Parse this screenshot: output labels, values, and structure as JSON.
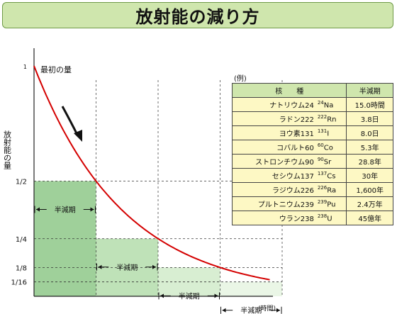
{
  "title": "放射能の減り方",
  "chart_data": {
    "type": "line",
    "ylabel": "放射能の量",
    "xlabel": "(時間)",
    "curve_label": "最初の量",
    "yticks": [
      "1",
      "1/2",
      "1/4",
      "1/8",
      "1/16"
    ],
    "ytick_values": [
      1,
      0.5,
      0.25,
      0.125,
      0.0625
    ],
    "x": [
      0,
      1,
      2,
      3,
      4
    ],
    "values": [
      1,
      0.5,
      0.25,
      0.125,
      0.0625
    ],
    "halflife_label": "半減期",
    "halflife_count": 4,
    "curve_color": "#d40000",
    "block_colors": [
      "#9fd09a",
      "#bfe2b8",
      "#d8eed2",
      "#eaf6e6"
    ]
  },
  "table": {
    "example_label": "(例)",
    "header": {
      "nuclide": "核　　種",
      "halflife": "半減期"
    },
    "rows": [
      {
        "name": "ナトリウム24",
        "mass": "24",
        "sym": "Na",
        "halflife": "15.0時間"
      },
      {
        "name": "ラドン222",
        "mass": "222",
        "sym": "Rn",
        "halflife": "3.8日"
      },
      {
        "name": "ヨウ素131",
        "mass": "131",
        "sym": "I",
        "halflife": "8.0日"
      },
      {
        "name": "コバルト60",
        "mass": "60",
        "sym": "Co",
        "halflife": "5.3年"
      },
      {
        "name": "ストロンチウム90",
        "mass": "90",
        "sym": "Sr",
        "halflife": "28.8年"
      },
      {
        "name": "セシウム137",
        "mass": "137",
        "sym": "Cs",
        "halflife": "30年"
      },
      {
        "name": "ラジウム226",
        "mass": "226",
        "sym": "Ra",
        "halflife": "1,600年"
      },
      {
        "name": "プルトニウム239",
        "mass": "239",
        "sym": "Pu",
        "halflife": "2.4万年"
      },
      {
        "name": "ウラン238",
        "mass": "238",
        "sym": "U",
        "halflife": "45億年"
      }
    ]
  }
}
